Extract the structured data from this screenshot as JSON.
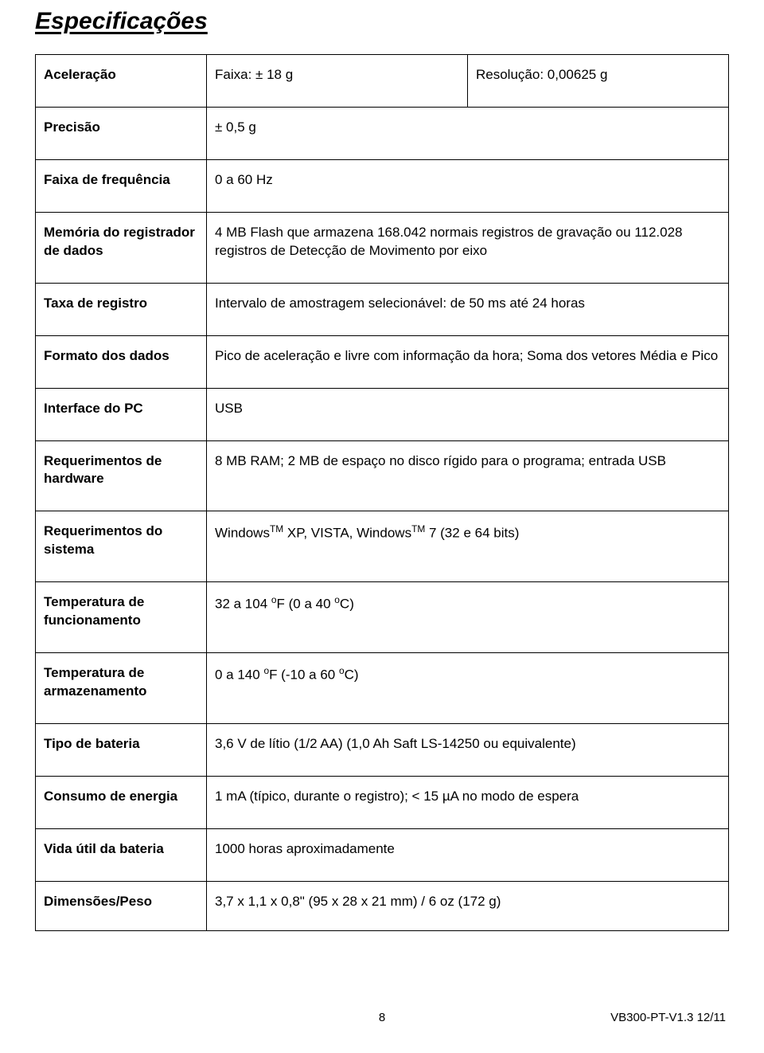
{
  "title": "Especificações",
  "rows": {
    "accel": {
      "label": "Aceleração",
      "range": "Faixa: ± 18 g",
      "resolution": "Resolução: 0,00625 g"
    },
    "precision": {
      "label": "Precisão",
      "value": "± 0,5 g"
    },
    "freqrange": {
      "label": "Faixa de frequência",
      "value": "0 a 60 Hz"
    },
    "memory": {
      "label": "Memória do registrador de dados",
      "value": "4 MB Flash que armazena 168.042 normais registros de gravação ou 112.028 registros de Detecção de Movimento por eixo"
    },
    "rate": {
      "label": "Taxa de registro",
      "value": "Intervalo de amostragem selecionável: de 50 ms até 24 horas"
    },
    "dataformat": {
      "label": "Formato dos dados",
      "value": "Pico de aceleração e livre com informação da hora; Soma dos vetores Média e Pico"
    },
    "pcif": {
      "label": "Interface do PC",
      "value": "USB"
    },
    "hwreq": {
      "label": "Requerimentos de hardware",
      "value": "8 MB RAM; 2 MB de espaço no disco rígido para o programa; entrada USB"
    },
    "sysreq": {
      "label": "Requerimentos do sistema",
      "prefix": "Windows",
      "mid": " XP, VISTA, Windows",
      "suffix": " 7 (32 e 64 bits)",
      "tm": "TM"
    },
    "optemp": {
      "label": "Temperatura de funcionamento",
      "a": "32 a 104 ",
      "b": "F (0 a 40 ",
      "c": "C)",
      "deg": "o"
    },
    "sttemp": {
      "label": "Temperatura de armazenamento",
      "a": "0 a 140 ",
      "b": "F (-10 a 60 ",
      "c": "C)",
      "deg": "o"
    },
    "battype": {
      "label": "Tipo de bateria",
      "value": "3,6 V de lítio (1/2 AA) (1,0 Ah Saft LS-14250 ou equivalente)"
    },
    "power": {
      "label": "Consumo de energia",
      "value": "1 mA (típico, durante o registro); < 15 µA no modo de espera"
    },
    "batlife": {
      "label": "Vida útil da bateria",
      "value": "1000 horas aproximadamente"
    },
    "dims": {
      "label": "Dimensões/Peso",
      "value": "3,7 x 1,1 x 0,8\" (95 x 28 x 21 mm) / 6 oz (172 g)"
    }
  },
  "footer": {
    "page": "8",
    "version": "VB300-PT-V1.3  12/11"
  },
  "style": {
    "font_body_pt": 13,
    "font_title_pt": 22,
    "border_color": "#000000",
    "bg_color": "#ffffff",
    "text_color": "#000000"
  }
}
